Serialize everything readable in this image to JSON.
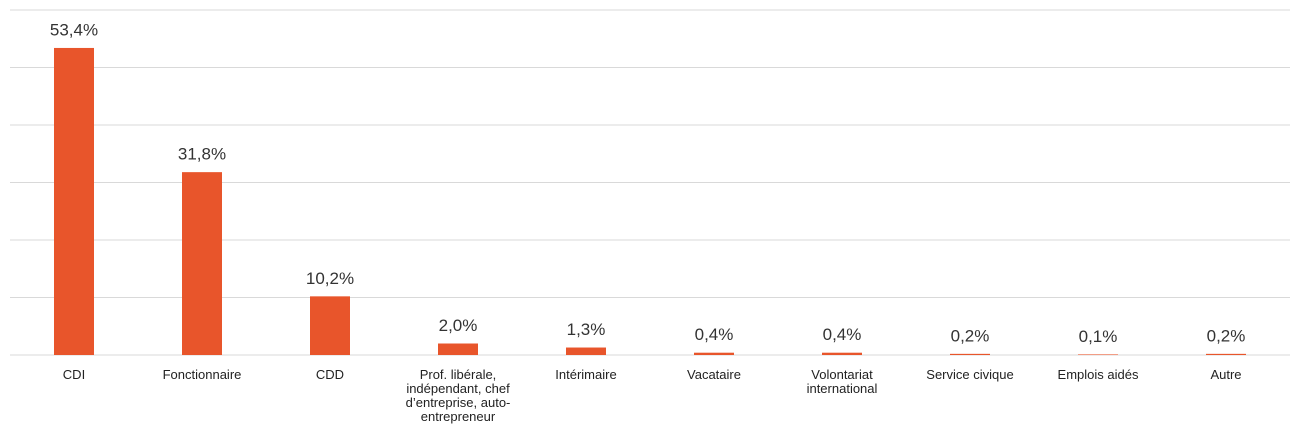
{
  "chart_data": {
    "type": "bar",
    "categories": [
      "CDI",
      "Fonctionnaire",
      "CDD",
      "Prof. libérale, indépendant, chef d’entreprise, auto-entrepreneur",
      "Intérimaire",
      "Vacataire",
      "Volontariat international",
      "Service civique",
      "Emplois aidés",
      "Autre"
    ],
    "values": [
      53.4,
      31.8,
      10.2,
      2.0,
      1.3,
      0.4,
      0.4,
      0.2,
      0.1,
      0.2
    ],
    "value_labels": [
      "53,4%",
      "31,8%",
      "10,2%",
      "2,0%",
      "1,3%",
      "0,4%",
      "0,4%",
      "0,2%",
      "0,1%",
      "0,2%"
    ],
    "color": "#e8552b",
    "ylim": [
      0,
      60
    ],
    "yticks": [
      0,
      10,
      20,
      30,
      40,
      50,
      60
    ],
    "grid": true
  }
}
